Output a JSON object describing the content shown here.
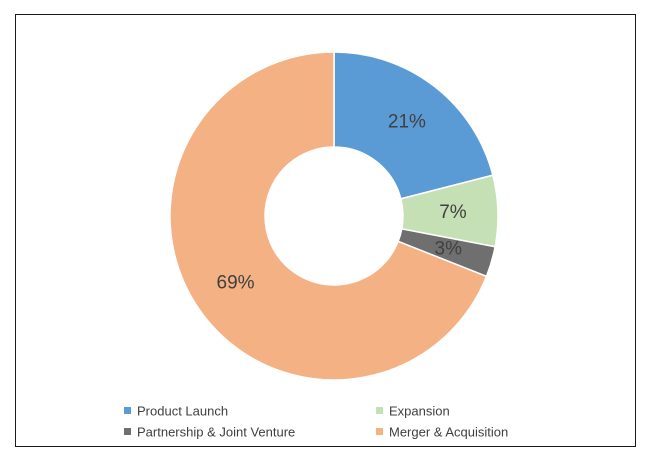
{
  "chart_data": {
    "type": "pie",
    "style": "donut",
    "title": "",
    "categories": [
      "Product Launch",
      "Expansion",
      "Partnership & Joint Venture",
      "Merger & Acquisition"
    ],
    "values": [
      21,
      7,
      3,
      69
    ],
    "labels": [
      "21%",
      "7%",
      "3%",
      "69%"
    ],
    "colors": [
      "#5b9bd5",
      "#c5e0b4",
      "#6f6f6f",
      "#f4b183"
    ],
    "legend_position": "bottom",
    "start_angle_deg": 0,
    "direction": "clockwise"
  }
}
